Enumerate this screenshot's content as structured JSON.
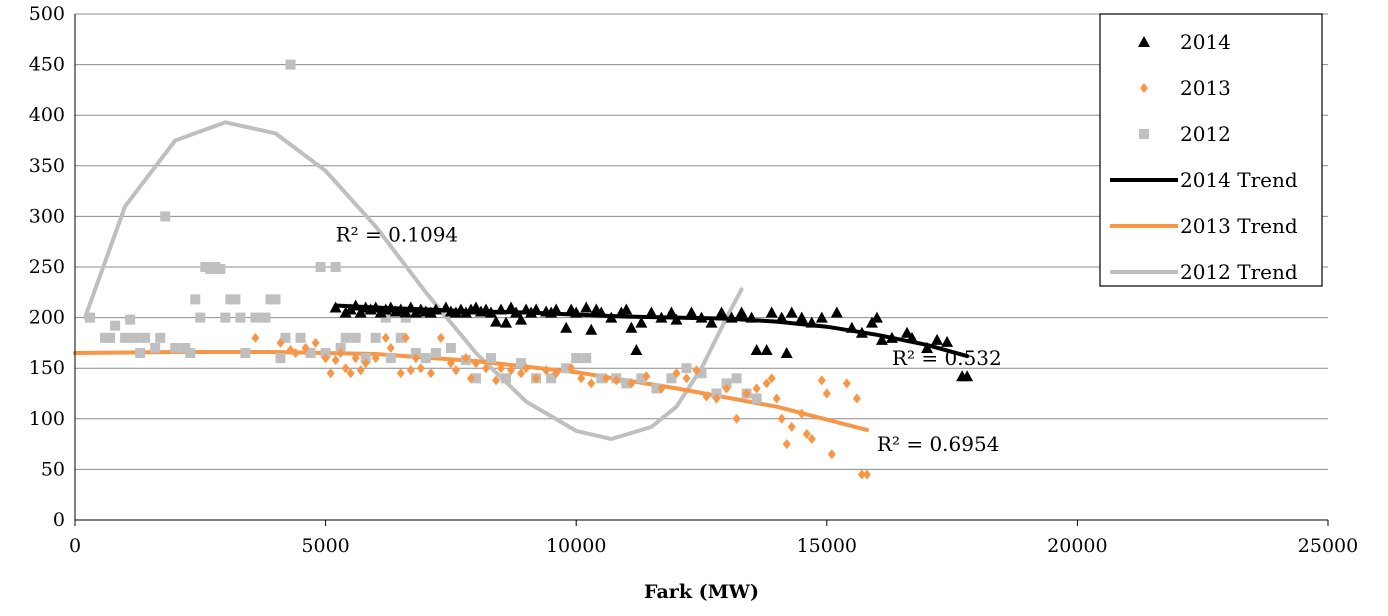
{
  "chart_data": {
    "type": "scatter",
    "title": "",
    "xlabel": "Fark (MW)",
    "ylabel": "",
    "xlim": [
      0,
      25000
    ],
    "ylim": [
      0,
      500
    ],
    "x_ticks": [
      "0",
      "5000",
      "10000",
      "15000",
      "20000",
      "25000"
    ],
    "y_ticks": [
      "0",
      "50",
      "100",
      "150",
      "200",
      "250",
      "300",
      "350",
      "400",
      "450",
      "500"
    ],
    "grid": "horizontal",
    "legend_position": "top-right",
    "series": [
      {
        "name": "2014",
        "marker": "triangle",
        "color": "#000000",
        "points": [
          [
            5200,
            210
          ],
          [
            5400,
            205
          ],
          [
            5500,
            208
          ],
          [
            5600,
            212
          ],
          [
            5700,
            205
          ],
          [
            5800,
            210
          ],
          [
            5900,
            208
          ],
          [
            6000,
            210
          ],
          [
            6100,
            205
          ],
          [
            6200,
            208
          ],
          [
            6300,
            210
          ],
          [
            6400,
            206
          ],
          [
            6500,
            208
          ],
          [
            6600,
            205
          ],
          [
            6700,
            210
          ],
          [
            6800,
            205
          ],
          [
            6900,
            208
          ],
          [
            7000,
            206
          ],
          [
            7100,
            205
          ],
          [
            7200,
            208
          ],
          [
            7400,
            210
          ],
          [
            7500,
            206
          ],
          [
            7600,
            205
          ],
          [
            7700,
            208
          ],
          [
            7800,
            205
          ],
          [
            7900,
            208
          ],
          [
            8000,
            210
          ],
          [
            8100,
            206
          ],
          [
            8200,
            208
          ],
          [
            8300,
            205
          ],
          [
            8400,
            196
          ],
          [
            8500,
            208
          ],
          [
            8600,
            195
          ],
          [
            8700,
            210
          ],
          [
            8800,
            205
          ],
          [
            8900,
            198
          ],
          [
            9000,
            208
          ],
          [
            9100,
            205
          ],
          [
            9200,
            208
          ],
          [
            9400,
            206
          ],
          [
            9500,
            205
          ],
          [
            9600,
            208
          ],
          [
            9800,
            190
          ],
          [
            9900,
            208
          ],
          [
            10000,
            205
          ],
          [
            10200,
            210
          ],
          [
            10300,
            188
          ],
          [
            10400,
            208
          ],
          [
            10500,
            205
          ],
          [
            10700,
            200
          ],
          [
            10900,
            205
          ],
          [
            11000,
            208
          ],
          [
            11100,
            190
          ],
          [
            11200,
            168
          ],
          [
            11300,
            195
          ],
          [
            11500,
            205
          ],
          [
            11700,
            200
          ],
          [
            11900,
            205
          ],
          [
            12000,
            198
          ],
          [
            12300,
            205
          ],
          [
            12500,
            200
          ],
          [
            12700,
            195
          ],
          [
            12900,
            205
          ],
          [
            13100,
            200
          ],
          [
            13300,
            205
          ],
          [
            13500,
            200
          ],
          [
            13600,
            168
          ],
          [
            13800,
            168
          ],
          [
            13900,
            205
          ],
          [
            14100,
            200
          ],
          [
            14200,
            165
          ],
          [
            14300,
            205
          ],
          [
            14500,
            200
          ],
          [
            14700,
            195
          ],
          [
            14900,
            200
          ],
          [
            15200,
            205
          ],
          [
            15500,
            190
          ],
          [
            15700,
            185
          ],
          [
            15900,
            195
          ],
          [
            16000,
            200
          ],
          [
            16100,
            178
          ],
          [
            16300,
            180
          ],
          [
            16600,
            185
          ],
          [
            16700,
            180
          ],
          [
            17000,
            170
          ],
          [
            17200,
            178
          ],
          [
            17400,
            176
          ],
          [
            17700,
            142
          ],
          [
            17800,
            142
          ]
        ]
      },
      {
        "name": "2013",
        "marker": "diamond",
        "color": "#f79646",
        "points": [
          [
            3600,
            180
          ],
          [
            4100,
            175
          ],
          [
            4300,
            168
          ],
          [
            4400,
            165
          ],
          [
            4600,
            170
          ],
          [
            4800,
            175
          ],
          [
            5000,
            160
          ],
          [
            5100,
            145
          ],
          [
            5200,
            158
          ],
          [
            5300,
            165
          ],
          [
            5400,
            150
          ],
          [
            5500,
            145
          ],
          [
            5600,
            160
          ],
          [
            5700,
            148
          ],
          [
            5800,
            155
          ],
          [
            6000,
            160
          ],
          [
            6200,
            180
          ],
          [
            6300,
            170
          ],
          [
            6500,
            145
          ],
          [
            6600,
            180
          ],
          [
            6700,
            148
          ],
          [
            6800,
            160
          ],
          [
            6900,
            150
          ],
          [
            7100,
            145
          ],
          [
            7300,
            180
          ],
          [
            7500,
            155
          ],
          [
            7600,
            148
          ],
          [
            7800,
            160
          ],
          [
            7900,
            140
          ],
          [
            8000,
            155
          ],
          [
            8200,
            150
          ],
          [
            8400,
            138
          ],
          [
            8500,
            150
          ],
          [
            8700,
            148
          ],
          [
            8900,
            145
          ],
          [
            9000,
            150
          ],
          [
            9200,
            140
          ],
          [
            9400,
            148
          ],
          [
            9600,
            145
          ],
          [
            9900,
            150
          ],
          [
            10100,
            140
          ],
          [
            10300,
            135
          ],
          [
            10600,
            140
          ],
          [
            10800,
            138
          ],
          [
            11100,
            135
          ],
          [
            11400,
            142
          ],
          [
            11700,
            130
          ],
          [
            12000,
            145
          ],
          [
            12200,
            140
          ],
          [
            12400,
            148
          ],
          [
            12600,
            122
          ],
          [
            12800,
            120
          ],
          [
            13000,
            130
          ],
          [
            13200,
            100
          ],
          [
            13400,
            125
          ],
          [
            13600,
            130
          ],
          [
            13800,
            135
          ],
          [
            13900,
            140
          ],
          [
            14000,
            120
          ],
          [
            14100,
            100
          ],
          [
            14200,
            75
          ],
          [
            14300,
            92
          ],
          [
            14500,
            105
          ],
          [
            14600,
            85
          ],
          [
            14700,
            80
          ],
          [
            14900,
            138
          ],
          [
            15000,
            125
          ],
          [
            15100,
            65
          ],
          [
            15400,
            135
          ],
          [
            15600,
            120
          ],
          [
            15700,
            45
          ],
          [
            15800,
            45
          ]
        ]
      },
      {
        "name": "2012",
        "marker": "square",
        "color": "#bfbfbf",
        "points": [
          [
            300,
            200
          ],
          [
            600,
            180
          ],
          [
            700,
            180
          ],
          [
            800,
            192
          ],
          [
            1000,
            180
          ],
          [
            1100,
            198
          ],
          [
            1200,
            180
          ],
          [
            1300,
            165
          ],
          [
            1400,
            180
          ],
          [
            1600,
            170
          ],
          [
            1700,
            180
          ],
          [
            1800,
            300
          ],
          [
            2000,
            170
          ],
          [
            2200,
            170
          ],
          [
            2300,
            165
          ],
          [
            2400,
            218
          ],
          [
            2500,
            200
          ],
          [
            2600,
            250
          ],
          [
            2700,
            248
          ],
          [
            2800,
            250
          ],
          [
            2900,
            248
          ],
          [
            3000,
            200
          ],
          [
            3100,
            218
          ],
          [
            3200,
            218
          ],
          [
            3300,
            200
          ],
          [
            3400,
            165
          ],
          [
            3600,
            200
          ],
          [
            3800,
            200
          ],
          [
            3900,
            218
          ],
          [
            4000,
            218
          ],
          [
            4100,
            160
          ],
          [
            4200,
            180
          ],
          [
            4300,
            450
          ],
          [
            4500,
            180
          ],
          [
            4700,
            165
          ],
          [
            4900,
            250
          ],
          [
            5000,
            165
          ],
          [
            5200,
            250
          ],
          [
            5300,
            170
          ],
          [
            5400,
            180
          ],
          [
            5600,
            180
          ],
          [
            5800,
            160
          ],
          [
            6000,
            180
          ],
          [
            6200,
            200
          ],
          [
            6300,
            160
          ],
          [
            6500,
            180
          ],
          [
            6600,
            200
          ],
          [
            6800,
            165
          ],
          [
            7000,
            160
          ],
          [
            7200,
            165
          ],
          [
            7500,
            170
          ],
          [
            7800,
            158
          ],
          [
            8000,
            140
          ],
          [
            8300,
            160
          ],
          [
            8600,
            140
          ],
          [
            8900,
            155
          ],
          [
            9200,
            140
          ],
          [
            9500,
            140
          ],
          [
            9800,
            150
          ],
          [
            10000,
            160
          ],
          [
            10200,
            160
          ],
          [
            10500,
            140
          ],
          [
            10800,
            140
          ],
          [
            11000,
            135
          ],
          [
            11300,
            140
          ],
          [
            11600,
            130
          ],
          [
            11900,
            140
          ],
          [
            12200,
            150
          ],
          [
            12500,
            145
          ],
          [
            12800,
            125
          ],
          [
            13000,
            135
          ],
          [
            13200,
            140
          ],
          [
            13400,
            125
          ],
          [
            13600,
            120
          ]
        ]
      }
    ],
    "trendlines": [
      {
        "name": "2014 Trend",
        "color": "#000000",
        "x_range": [
          5200,
          17800
        ],
        "points": [
          [
            5200,
            212
          ],
          [
            6000,
            210
          ],
          [
            7000,
            208
          ],
          [
            8000,
            206
          ],
          [
            9000,
            205
          ],
          [
            10000,
            203
          ],
          [
            11000,
            201
          ],
          [
            12000,
            200
          ],
          [
            13000,
            199
          ],
          [
            14000,
            196
          ],
          [
            15000,
            191
          ],
          [
            16000,
            183
          ],
          [
            17000,
            173
          ],
          [
            17800,
            162
          ]
        ],
        "r2_label": "R² = 0.532"
      },
      {
        "name": "2013 Trend",
        "color": "#f79646",
        "x_range": [
          0,
          15800
        ],
        "points": [
          [
            0,
            165
          ],
          [
            2000,
            166
          ],
          [
            4000,
            166
          ],
          [
            6000,
            164
          ],
          [
            8000,
            157
          ],
          [
            10000,
            146
          ],
          [
            12000,
            130
          ],
          [
            14000,
            112
          ],
          [
            15800,
            89
          ]
        ],
        "r2_label": "R² = 0.6954"
      },
      {
        "name": "2012 Trend",
        "color": "#bfbfbf",
        "x_range": [
          200,
          13300
        ],
        "points": [
          [
            200,
            200
          ],
          [
            1000,
            310
          ],
          [
            2000,
            375
          ],
          [
            3000,
            393
          ],
          [
            4000,
            382
          ],
          [
            5000,
            345
          ],
          [
            6000,
            290
          ],
          [
            7000,
            225
          ],
          [
            8000,
            165
          ],
          [
            9000,
            117
          ],
          [
            10000,
            88
          ],
          [
            10700,
            80
          ],
          [
            11500,
            92
          ],
          [
            12000,
            112
          ],
          [
            12500,
            150
          ],
          [
            13000,
            200
          ],
          [
            13300,
            228
          ]
        ],
        "r2_label": "R² = 0.1094"
      }
    ],
    "legend": [
      "2014",
      "2013",
      "2012",
      "2014 Trend",
      "2013 Trend",
      "2012 Trend"
    ]
  }
}
